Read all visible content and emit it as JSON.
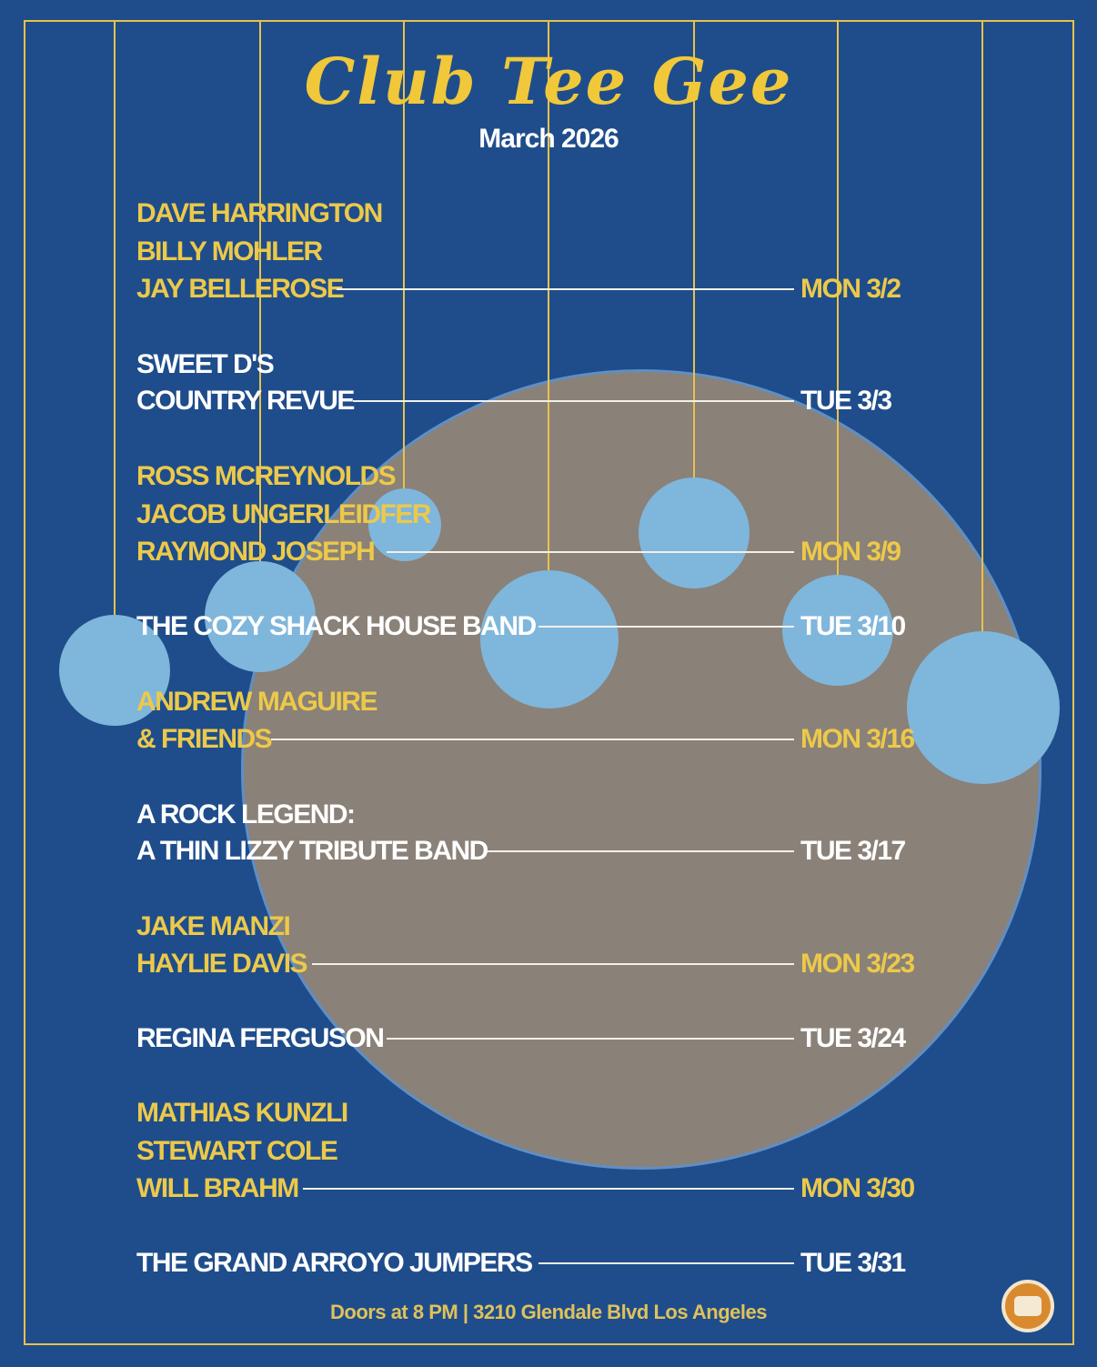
{
  "header": {
    "title": "Club Tee Gee",
    "month": "March 2026"
  },
  "shows": [
    {
      "lines": [
        "DAVE HARRINGTON",
        "BILLY MOHLER",
        "JAY BELLEROSE"
      ],
      "date": "MON 3/2",
      "color": "yellow"
    },
    {
      "lines": [
        "SWEET D'S",
        "COUNTRY REVUE"
      ],
      "date": "TUE 3/3",
      "color": "white"
    },
    {
      "lines": [
        "ROSS MCREYNOLDS",
        "JACOB UNGERLEIDFER",
        "RAYMOND JOSEPH"
      ],
      "date": "MON 3/9",
      "color": "yellow"
    },
    {
      "lines": [
        "THE COZY SHACK HOUSE BAND"
      ],
      "date": "TUE 3/10",
      "color": "white"
    },
    {
      "lines": [
        "ANDREW MAGUIRE",
        "& FRIENDS"
      ],
      "date": "MON 3/16",
      "color": "yellow"
    },
    {
      "lines": [
        "A ROCK LEGEND:",
        "A THIN LIZZY TRIBUTE BAND"
      ],
      "date": "TUE 3/17",
      "color": "white"
    },
    {
      "lines": [
        "JAKE MANZI",
        "HAYLIE DAVIS"
      ],
      "date": "MON 3/23",
      "color": "yellow"
    },
    {
      "lines": [
        "REGINA FERGUSON"
      ],
      "date": "TUE 3/24",
      "color": "white"
    },
    {
      "lines": [
        "MATHIAS KUNZLI",
        "STEWART COLE",
        "WILL BRAHM"
      ],
      "date": "MON 3/30",
      "color": "yellow"
    },
    {
      "lines": [
        "THE GRAND ARROYO JUMPERS"
      ],
      "date": "TUE 3/31",
      "color": "white"
    }
  ],
  "footer": {
    "text": "Doors at 8 PM | 3210 Glendale Blvd Los Angeles"
  },
  "colors": {
    "background": "#1f4d8b",
    "accent": "#ecc94a",
    "moon": "#8a8178",
    "ornament": "#7fb6dc"
  },
  "icons": {
    "logo": "club-logo-icon"
  }
}
